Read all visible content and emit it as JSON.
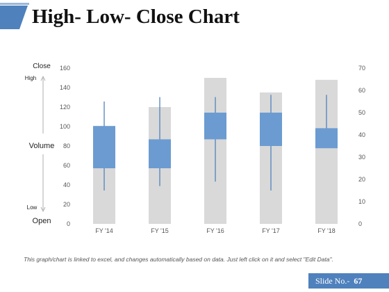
{
  "title": "High- Low- Close Chart",
  "footer_note": "This graph/chart is linked to excel, and changes automatically based on data. Just left click on it and select \"Edit Data\".",
  "slide": {
    "label": "Slide No.-",
    "number": "67"
  },
  "colors": {
    "accent": "#4f81bd",
    "volume_bar": "#d9d9d9",
    "candle": "#6b9bd1",
    "wick": "#4f81bd"
  },
  "chart_data": {
    "type": "bar",
    "title": "",
    "categories": [
      "FY '14",
      "FY '15",
      "FY '16",
      "FY '17",
      "FY '18"
    ],
    "left_axis": {
      "ylim": [
        0,
        160
      ],
      "ticks": [
        "0",
        "20",
        "40",
        "60",
        "80",
        "100",
        "120",
        "140",
        "160"
      ]
    },
    "right_axis": {
      "ylim": [
        0,
        70
      ],
      "ticks": [
        "0",
        "10",
        "20",
        "30",
        "40",
        "50",
        "60",
        "70"
      ]
    },
    "series": [
      {
        "name": "Volume",
        "axis": "left",
        "values": [
          100,
          120,
          150,
          135,
          148
        ]
      },
      {
        "name": "Open",
        "axis": "right",
        "values": [
          25,
          25,
          38,
          35,
          34
        ]
      },
      {
        "name": "Close",
        "axis": "right",
        "values": [
          44,
          38,
          50,
          50,
          43
        ]
      },
      {
        "name": "High",
        "axis": "right",
        "values": [
          55,
          57,
          57,
          58,
          58
        ]
      },
      {
        "name": "Low",
        "axis": "right",
        "values": [
          15,
          17,
          19,
          15,
          35
        ]
      }
    ],
    "side_labels": {
      "close": "Close",
      "high": "High",
      "volume": "Volume",
      "low": "Low",
      "open": "Open"
    },
    "grid": false,
    "legend": "none"
  }
}
